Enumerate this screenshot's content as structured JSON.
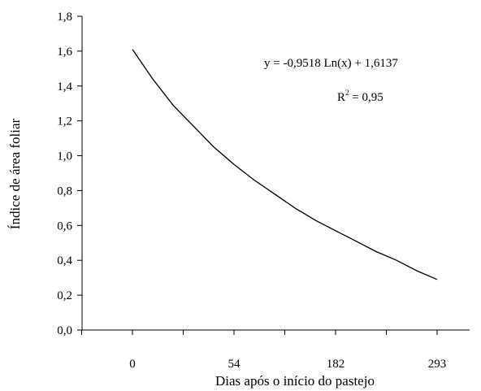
{
  "chart_data": {
    "type": "line",
    "title": "",
    "xlabel": "Dias após o início do pastejo",
    "ylabel": "Índice de área foliar",
    "ylim": [
      0,
      1.8
    ],
    "y_ticks": [
      "0,0",
      "0,2",
      "0,4",
      "0,6",
      "0,8",
      "1,0",
      "1,2",
      "1,4",
      "1,6",
      "1,8"
    ],
    "x_ticks": [
      "0",
      "54",
      "182",
      "293"
    ],
    "grid": false,
    "legend": "none",
    "annotations": {
      "equation": "y = -0,9518 Ln(x) + 1,6137",
      "r2_label": "R",
      "r2_sup": "2",
      "r2_value": " = 0,95"
    },
    "series": [
      {
        "equation_params": {
          "a": -0.9518,
          "b": 1.6137
        },
        "x_index": [
          1,
          1.2,
          1.4,
          1.6,
          1.8,
          2,
          2.2,
          2.4,
          2.6,
          2.8,
          3,
          3.2,
          3.4,
          3.6,
          3.8,
          4
        ],
        "values": [
          1.61,
          1.44,
          1.29,
          1.17,
          1.05,
          0.95,
          0.86,
          0.78,
          0.7,
          0.63,
          0.57,
          0.51,
          0.45,
          0.4,
          0.34,
          0.29
        ]
      }
    ],
    "color": "#000000"
  }
}
